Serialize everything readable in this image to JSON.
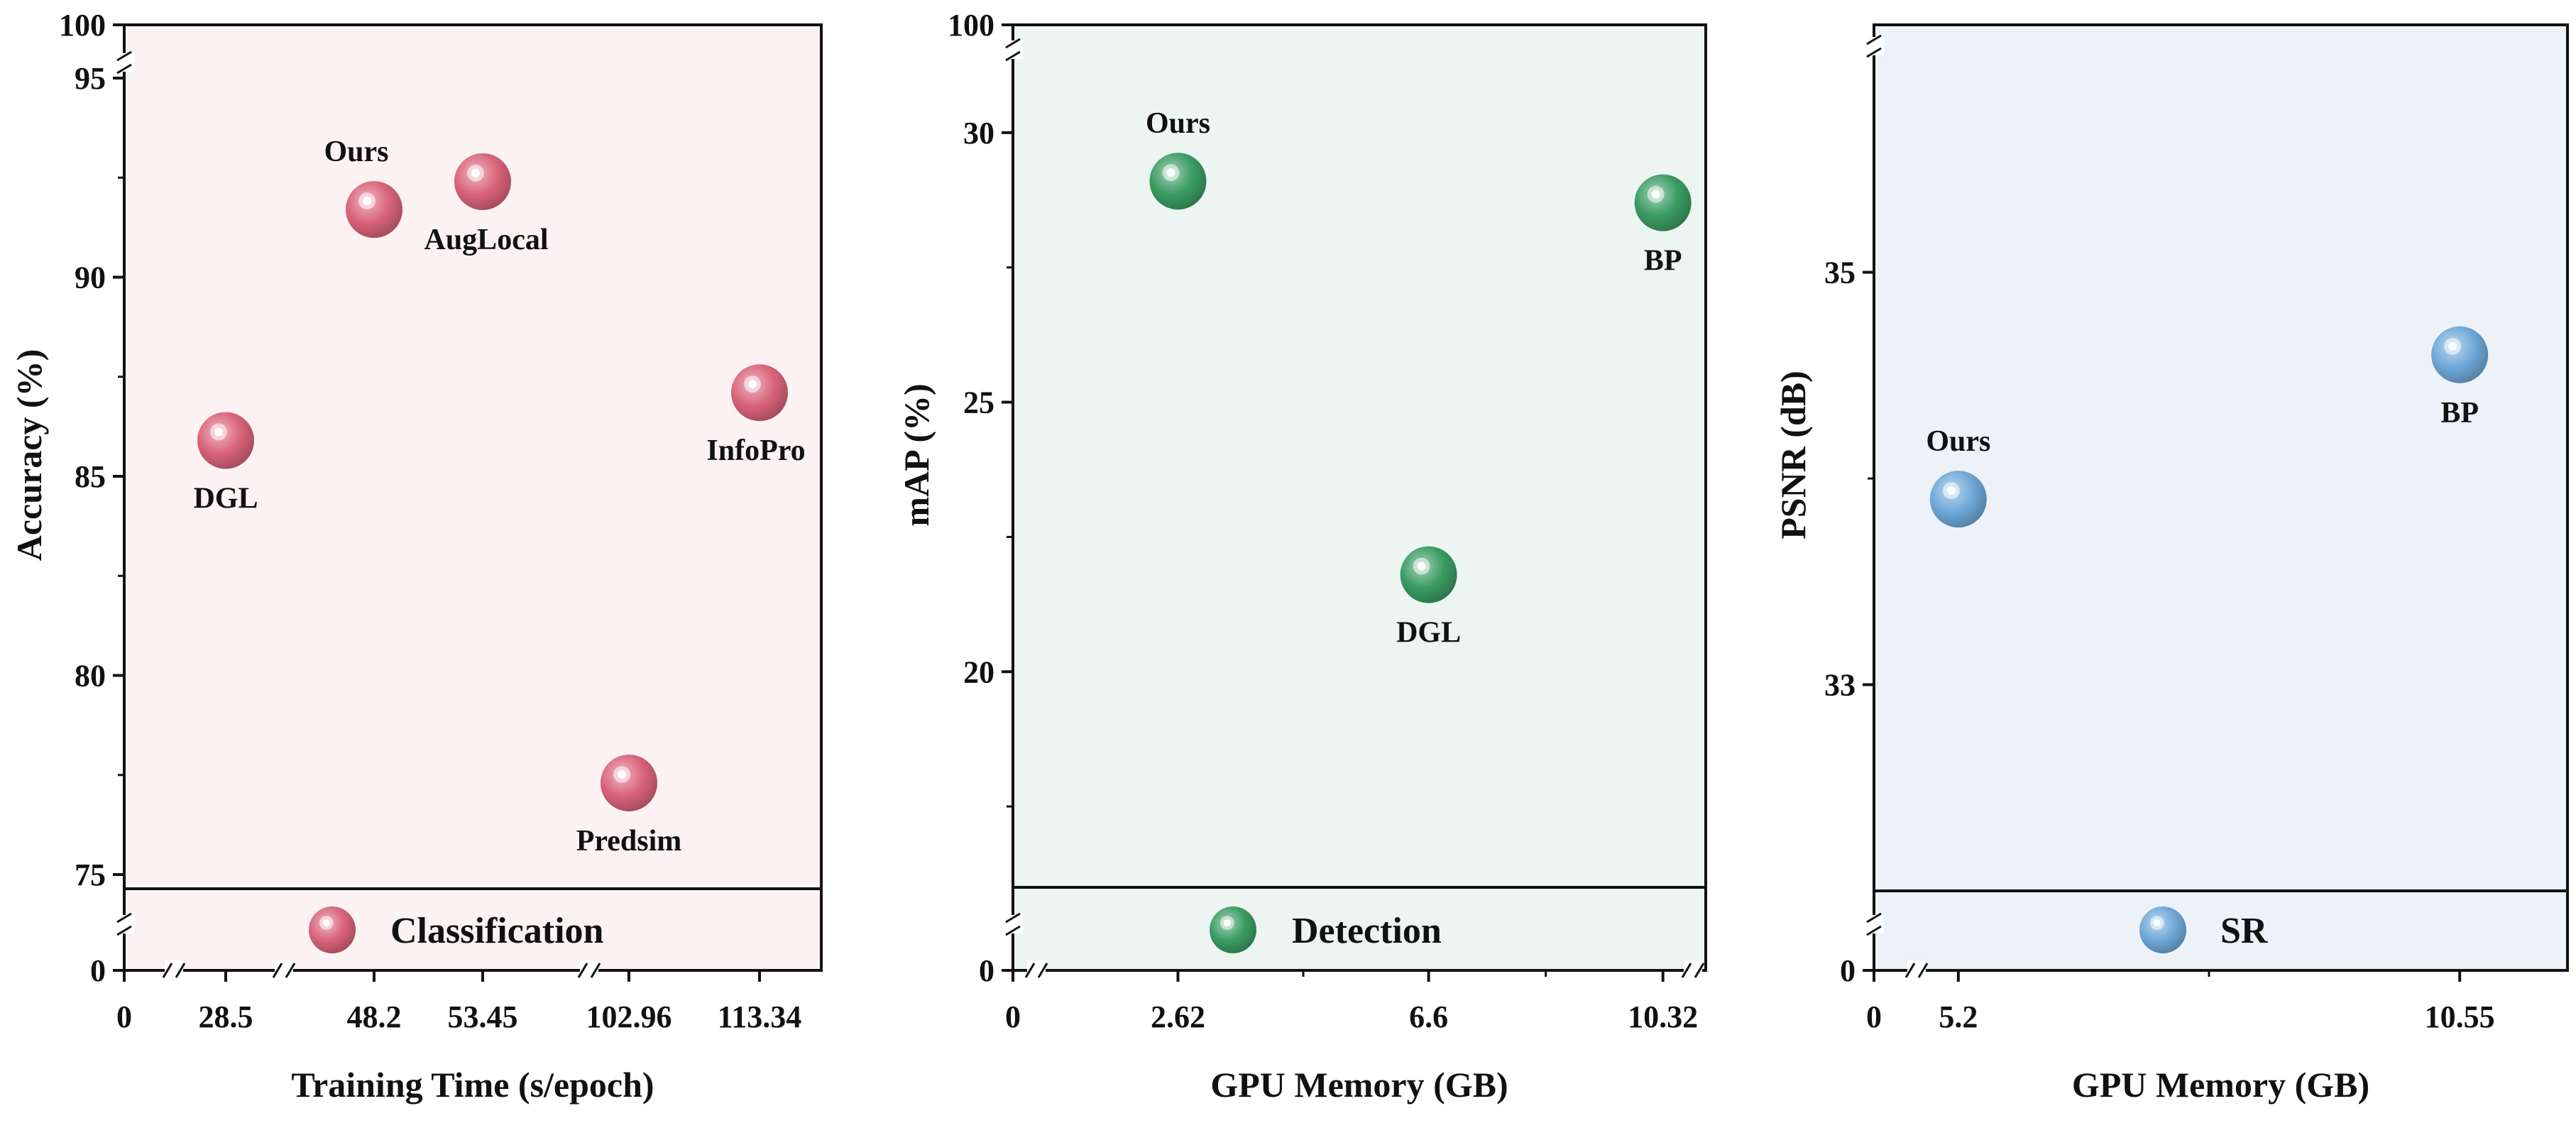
{
  "chart_data": [
    {
      "type": "scatter",
      "panel": "classification",
      "xlabel": "Training Time (s/epoch)",
      "ylabel": "Accuracy (%)",
      "x_axis": "broken categorical",
      "x_ticks": [
        "0",
        "28.5",
        "48.2",
        "53.45",
        "102.96",
        "113.34"
      ],
      "y_axis": "broken",
      "y_ticks": [
        "0",
        "75",
        "80",
        "85",
        "90",
        "95",
        "100"
      ],
      "y_segment_main": [
        75,
        95
      ],
      "legend": {
        "label": "Classification",
        "color": "#d9637a",
        "placement": "bottom-center"
      },
      "background": "#fcf2f3",
      "color": "#d9637a",
      "points": [
        {
          "name": "DGL",
          "x": 28.5,
          "y": 85.9
        },
        {
          "name": "Ours",
          "x": 48.2,
          "y": 91.7
        },
        {
          "name": "AugLocal",
          "x": 53.45,
          "y": 92.4
        },
        {
          "name": "Predsim",
          "x": 102.96,
          "y": 77.3
        },
        {
          "name": "InfoPro",
          "x": 113.34,
          "y": 87.1
        }
      ]
    },
    {
      "type": "scatter",
      "panel": "detection",
      "xlabel": "GPU Memory (GB)",
      "ylabel": "mAP (%)",
      "x_ticks": [
        "0",
        "2.62",
        "6.6",
        "10.32"
      ],
      "x_range": [
        0,
        11
      ],
      "y_axis": "broken",
      "y_ticks": [
        "0",
        "20",
        "25",
        "30",
        "100"
      ],
      "y_segment_main": [
        16,
        32
      ],
      "legend": {
        "label": "Detection",
        "color": "#3a9c62",
        "placement": "bottom-center"
      },
      "background": "#edf5f2",
      "color": "#3a9c62",
      "points": [
        {
          "name": "Ours",
          "x": 2.62,
          "y": 29.1
        },
        {
          "name": "DGL",
          "x": 6.6,
          "y": 21.8
        },
        {
          "name": "BP",
          "x": 10.32,
          "y": 28.7
        }
      ]
    },
    {
      "type": "scatter",
      "panel": "sr",
      "xlabel": "GPU Memory (GB)",
      "ylabel": "PSNR (dB)",
      "x_ticks": [
        "0",
        "5.2",
        "10.55"
      ],
      "x_range": [
        4.3,
        11.7
      ],
      "y_axis": "broken",
      "y_ticks": [
        "0",
        "33",
        "35"
      ],
      "y_segment_main": [
        32.0,
        36.2
      ],
      "legend": {
        "label": "SR",
        "color": "#6fa8d8",
        "placement": "bottom-center"
      },
      "background": "#edf2f8",
      "color": "#6fa8d8",
      "points": [
        {
          "name": "Ours",
          "x": 5.2,
          "y": 33.9
        },
        {
          "name": "BP",
          "x": 10.55,
          "y": 34.6
        }
      ]
    }
  ]
}
